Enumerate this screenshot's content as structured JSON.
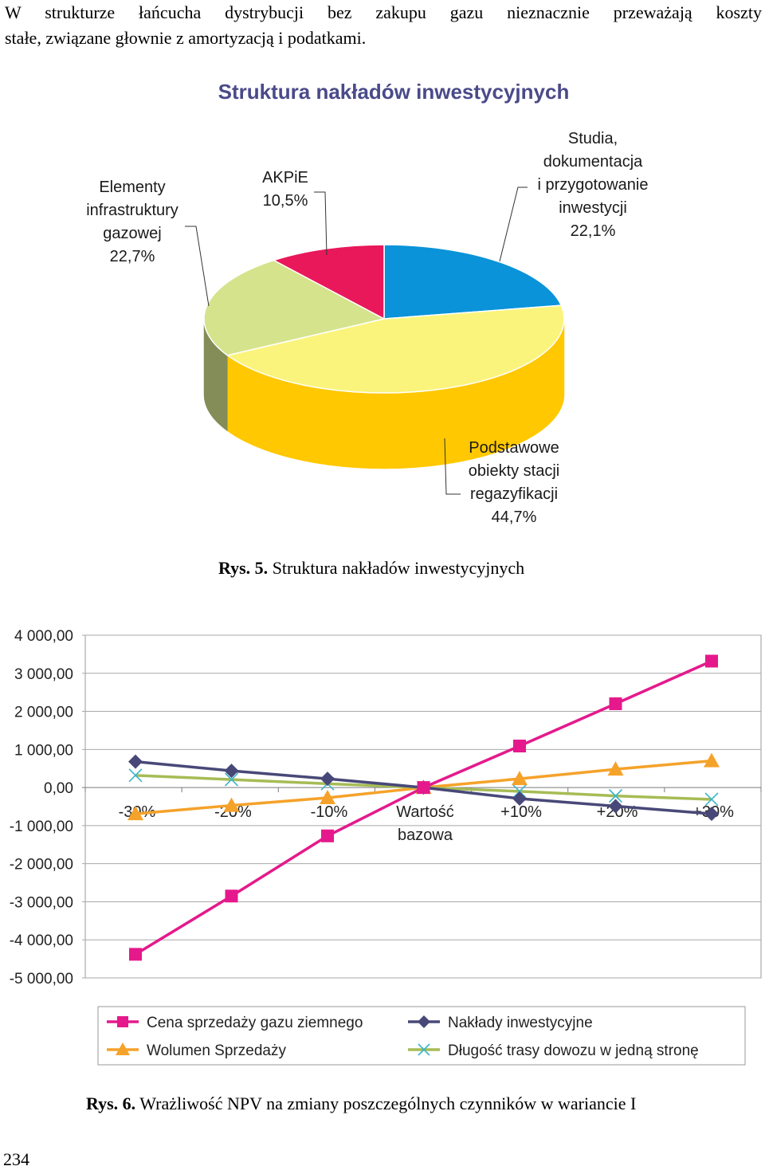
{
  "intro": {
    "line1": "W strukturze łańcucha dystrybucji bez zakupu gazu nieznacznie przeważają koszty",
    "line2": "stałe, związane głownie z amortyzacją i podatkami."
  },
  "figure5": {
    "caption_label": "Rys. 5.",
    "caption_text": "Struktura nakładów inwestycyjnych"
  },
  "figure6": {
    "caption_label": "Rys. 6.",
    "caption_text": "Wrażliwość NPV na zmiany poszczególnych czynników w wariancie I"
  },
  "page_number": "234",
  "chart_data": [
    {
      "type": "pie",
      "style": "3d",
      "title": "Struktura nakładów inwestycyjnych",
      "slices": [
        {
          "label_lines": [
            "Studia,",
            "dokumentacja",
            "i przygotowanie",
            "inwestycji",
            "22,1%"
          ],
          "value": 22.1,
          "color": "#0a93d8"
        },
        {
          "label_lines": [
            "Podstawowe",
            "obiekty stacji",
            "regazyfikacji",
            "44,7%"
          ],
          "value": 44.7,
          "color": "#fbf47c"
        },
        {
          "label_lines": [
            "Elementy",
            "infrastruktury",
            "gazowej",
            "22,7%"
          ],
          "value": 22.7,
          "color": "#d5e38c"
        },
        {
          "label_lines": [
            "AKPiE",
            "10,5%"
          ],
          "value": 10.5,
          "color": "#e8185a"
        }
      ]
    },
    {
      "type": "line",
      "categories": [
        "-30%",
        "-20%",
        "-10%",
        "Wartość bazowa",
        "+10%",
        "+20%",
        "+30%"
      ],
      "category_label_lines": [
        [
          "-30%"
        ],
        [
          "-20%"
        ],
        [
          "-10%"
        ],
        [
          "Wartość",
          "bazowa"
        ],
        [
          "+10%"
        ],
        [
          "+20%"
        ],
        [
          "+30%"
        ]
      ],
      "ylim": [
        -5000,
        4000
      ],
      "ytick_labels": [
        "4 000,00",
        "3 000,00",
        "2 000,00",
        "1 000,00",
        "0,00",
        "-1 000,00",
        "-2 000,00",
        "-3 000,00",
        "-4 000,00",
        "-5 000,00"
      ],
      "grid": true,
      "legend_position": "bottom",
      "series": [
        {
          "name": "Cena sprzedaży gazu ziemnego",
          "color": "#e5198c",
          "marker": "square",
          "values": [
            -4380,
            -2850,
            -1270,
            0,
            1090,
            2200,
            3320
          ]
        },
        {
          "name": "Nakłady inwestycyjne",
          "color": "#484878",
          "marker": "diamond",
          "values": [
            680,
            440,
            230,
            0,
            -290,
            -490,
            -690
          ]
        },
        {
          "name": "Wolumen Sprzedaży",
          "color": "#f5a22a",
          "marker": "triangle",
          "values": [
            -690,
            -470,
            -270,
            0,
            230,
            480,
            700
          ]
        },
        {
          "name": "Długość trasy dowozu w jedną stronę",
          "color": "#a6bc55",
          "marker": "x",
          "markerColor": "#3cb4c8",
          "values": [
            320,
            210,
            100,
            0,
            -100,
            -220,
            -310
          ]
        }
      ]
    }
  ]
}
